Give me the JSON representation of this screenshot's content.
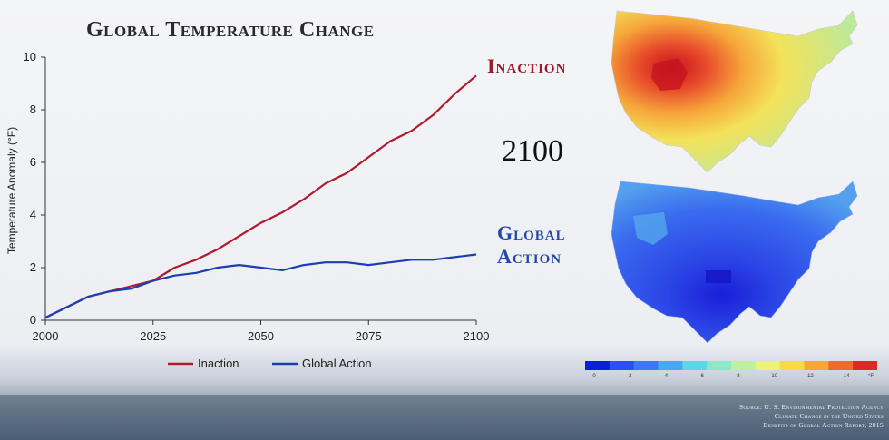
{
  "title": "Global Temperature Change",
  "scenario_labels": {
    "inaction": "Inaction",
    "global_action_line1": "Global",
    "global_action_line2": "Action"
  },
  "map_year": "2100",
  "colors": {
    "inaction": "#b01a30",
    "global_action": "#1c3fb0",
    "title": "#2a2a2a"
  },
  "chart_data": {
    "type": "line",
    "title": "Global Temperature Change",
    "xlabel": "",
    "ylabel": "Temperature Anomaly (°F)",
    "xlim": [
      2000,
      2100
    ],
    "ylim": [
      0,
      10
    ],
    "xticks": [
      2000,
      2025,
      2050,
      2075,
      2100
    ],
    "yticks": [
      0,
      2,
      4,
      6,
      8,
      10
    ],
    "grid": false,
    "legend": "bottom-center",
    "x": [
      2000,
      2005,
      2010,
      2015,
      2020,
      2025,
      2030,
      2035,
      2040,
      2045,
      2050,
      2055,
      2060,
      2065,
      2070,
      2075,
      2080,
      2085,
      2090,
      2095,
      2100
    ],
    "series": [
      {
        "name": "Inaction",
        "color": "#b01a30",
        "values": [
          0.1,
          0.5,
          0.9,
          1.1,
          1.3,
          1.5,
          2.0,
          2.3,
          2.7,
          3.2,
          3.7,
          4.1,
          4.6,
          5.2,
          5.6,
          6.2,
          6.8,
          7.2,
          7.8,
          8.6,
          9.3
        ]
      },
      {
        "name": "Global Action",
        "color": "#1c3fb0",
        "values": [
          0.1,
          0.5,
          0.9,
          1.1,
          1.2,
          1.5,
          1.7,
          1.8,
          2.0,
          2.1,
          2.0,
          1.9,
          2.1,
          2.2,
          2.2,
          2.1,
          2.2,
          2.3,
          2.3,
          2.4,
          2.5
        ]
      }
    ]
  },
  "colorbar": {
    "ticks": [
      "0",
      "2",
      "4",
      "6",
      "8",
      "10",
      "12",
      "14"
    ],
    "unit": "°F",
    "colors": [
      "#0a1fd9",
      "#2c4ff0",
      "#3b79f2",
      "#48a8f0",
      "#5dd6e8",
      "#8de8c6",
      "#bff0a0",
      "#ecf27a",
      "#f6da4a",
      "#f7a73a",
      "#ee6a2e",
      "#d92a25"
    ]
  },
  "source": [
    "Source: U. S. Environmental Protection Agency",
    "Climate Change in the United States",
    "Benefits of Global Action Report, 2015"
  ]
}
